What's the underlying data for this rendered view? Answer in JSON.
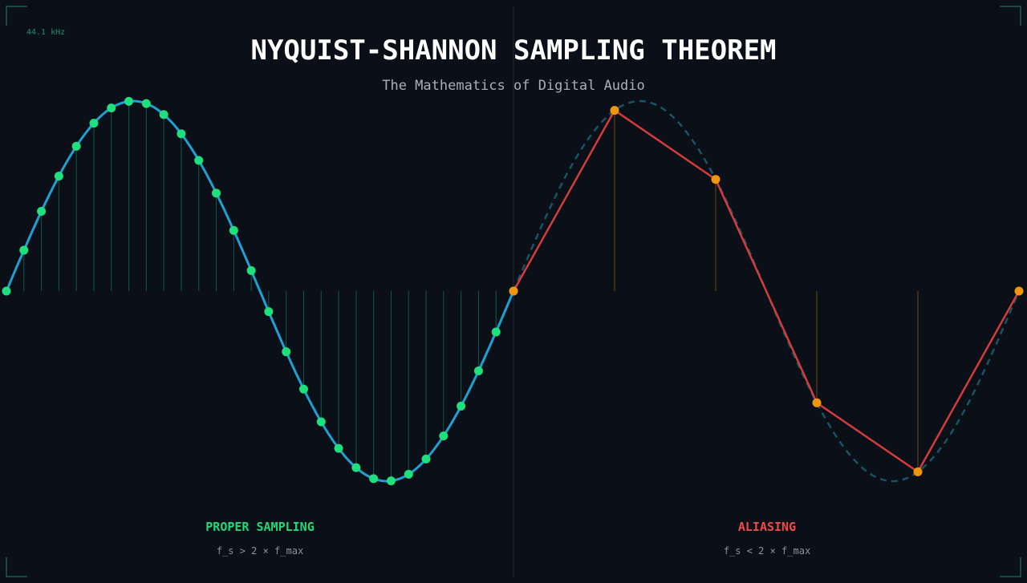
{
  "header": {
    "rate": "44.1 kHz",
    "title": "NYQUIST-SHANNON SAMPLING THEOREM",
    "subtitle": "The Mathematics of Digital Audio"
  },
  "panels": [
    {
      "label": "PROPER SAMPLING",
      "formula": "f_s > 2 × f_max"
    },
    {
      "label": "ALIASING",
      "formula": "f_s < 2 × f_max"
    }
  ]
}
